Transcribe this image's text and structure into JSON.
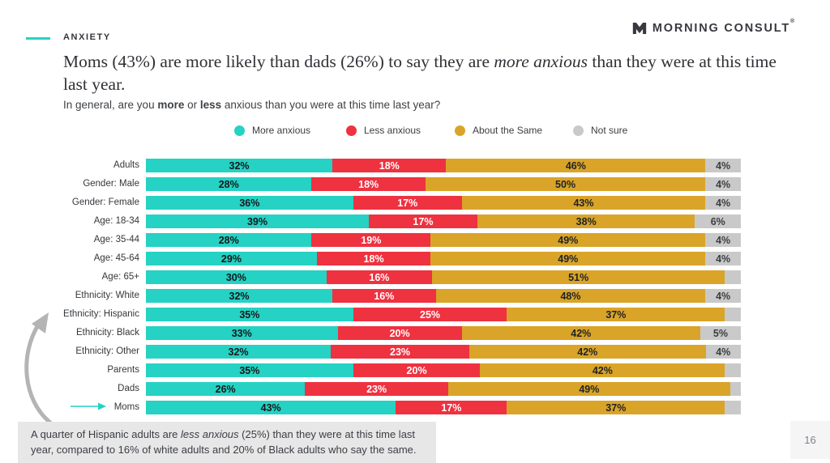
{
  "header": {
    "eyebrow": "ANXIETY",
    "brand": "MORNING CONSULT",
    "brand_mark_symbol": "®"
  },
  "title": {
    "pre": "Moms (43%) are more likely than dads (26%) to say they are ",
    "italic": "more anxious",
    "post": " than they were at this time last year."
  },
  "subtitle": {
    "p1": "In general, are you ",
    "b1": "more",
    "p2": " or ",
    "b2": "less",
    "p3": " anxious than you were at this time last year?"
  },
  "colors": {
    "teal": "#25d2c3",
    "red": "#ee3240",
    "gold": "#d9a428",
    "gray": "#c9c9c9",
    "arrow_gray": "#b4b4b4"
  },
  "legend": {
    "items": [
      {
        "label": "More anxious",
        "color_key": "teal"
      },
      {
        "label": "Less anxious",
        "color_key": "red"
      },
      {
        "label": "About the Same",
        "color_key": "gold"
      },
      {
        "label": "Not sure",
        "color_key": "gray"
      }
    ]
  },
  "chart_data": {
    "type": "bar",
    "subtype": "horizontal-stacked-100pct",
    "title": "In general, are you more or less anxious than you were at this time last year?",
    "series_names": [
      "More anxious",
      "Less anxious",
      "About the Same",
      "Not sure"
    ],
    "series_keys": [
      "teal",
      "red",
      "gold",
      "gray"
    ],
    "label_colors": [
      "#15181c",
      "#ffffff",
      "#1f2226",
      "#3a3d41"
    ],
    "axis": {
      "x_range_pct": [
        0,
        100
      ],
      "grid": false,
      "legend_position": "top"
    },
    "rows": [
      {
        "label": "Adults",
        "values": [
          32,
          18,
          46,
          4
        ],
        "labels": [
          "32%",
          "18%",
          "46%",
          "4%"
        ]
      },
      {
        "label": "Gender: Male",
        "values": [
          28,
          18,
          50,
          4
        ],
        "labels": [
          "28%",
          "18%",
          "50%",
          "4%"
        ]
      },
      {
        "label": "Gender: Female",
        "values": [
          36,
          17,
          43,
          4
        ],
        "labels": [
          "36%",
          "17%",
          "43%",
          "4%"
        ]
      },
      {
        "label": "Age: 18-34",
        "values": [
          39,
          17,
          38,
          6
        ],
        "labels": [
          "39%",
          "17%",
          "38%",
          "6%"
        ]
      },
      {
        "label": "Age: 35-44",
        "values": [
          28,
          19,
          49,
          4
        ],
        "labels": [
          "28%",
          "19%",
          "49%",
          "4%"
        ]
      },
      {
        "label": "Age: 45-64",
        "values": [
          29,
          18,
          49,
          4
        ],
        "labels": [
          "29%",
          "18%",
          "49%",
          "4%"
        ]
      },
      {
        "label": "Age: 65+",
        "values": [
          30,
          16,
          51,
          3
        ],
        "labels": [
          "30%",
          "16%",
          "51%",
          ""
        ]
      },
      {
        "label": "Ethnicity: White",
        "values": [
          32,
          16,
          48,
          4
        ],
        "labels": [
          "32%",
          "16%",
          "48%",
          "4%"
        ]
      },
      {
        "label": "Ethnicity: Hispanic",
        "values": [
          35,
          25,
          37,
          3
        ],
        "labels": [
          "35%",
          "25%",
          "37%",
          ""
        ]
      },
      {
        "label": "Ethnicity: Black",
        "values": [
          33,
          20,
          42,
          5
        ],
        "labels": [
          "33%",
          "20%",
          "42%",
          "5%"
        ]
      },
      {
        "label": "Ethnicity: Other",
        "values": [
          32,
          23,
          42,
          4
        ],
        "labels": [
          "32%",
          "23%",
          "42%",
          "4%"
        ]
      },
      {
        "label": "Parents",
        "values": [
          35,
          20,
          42,
          3
        ],
        "labels": [
          "35%",
          "20%",
          "42%",
          ""
        ]
      },
      {
        "label": "Dads",
        "values": [
          26,
          23,
          49,
          2
        ],
        "labels": [
          "26%",
          "23%",
          "49%",
          ""
        ]
      },
      {
        "label": "Moms",
        "values": [
          43,
          17,
          37,
          3
        ],
        "labels": [
          "43%",
          "17%",
          "37%",
          ""
        ]
      }
    ]
  },
  "callout": {
    "pre": "A quarter of Hispanic adults are ",
    "italic": "less anxious",
    "post": " (25%) than they were at this time last year, compared to 16% of white adults and 20% of Black adults who say the same."
  },
  "page": {
    "number": "16"
  }
}
